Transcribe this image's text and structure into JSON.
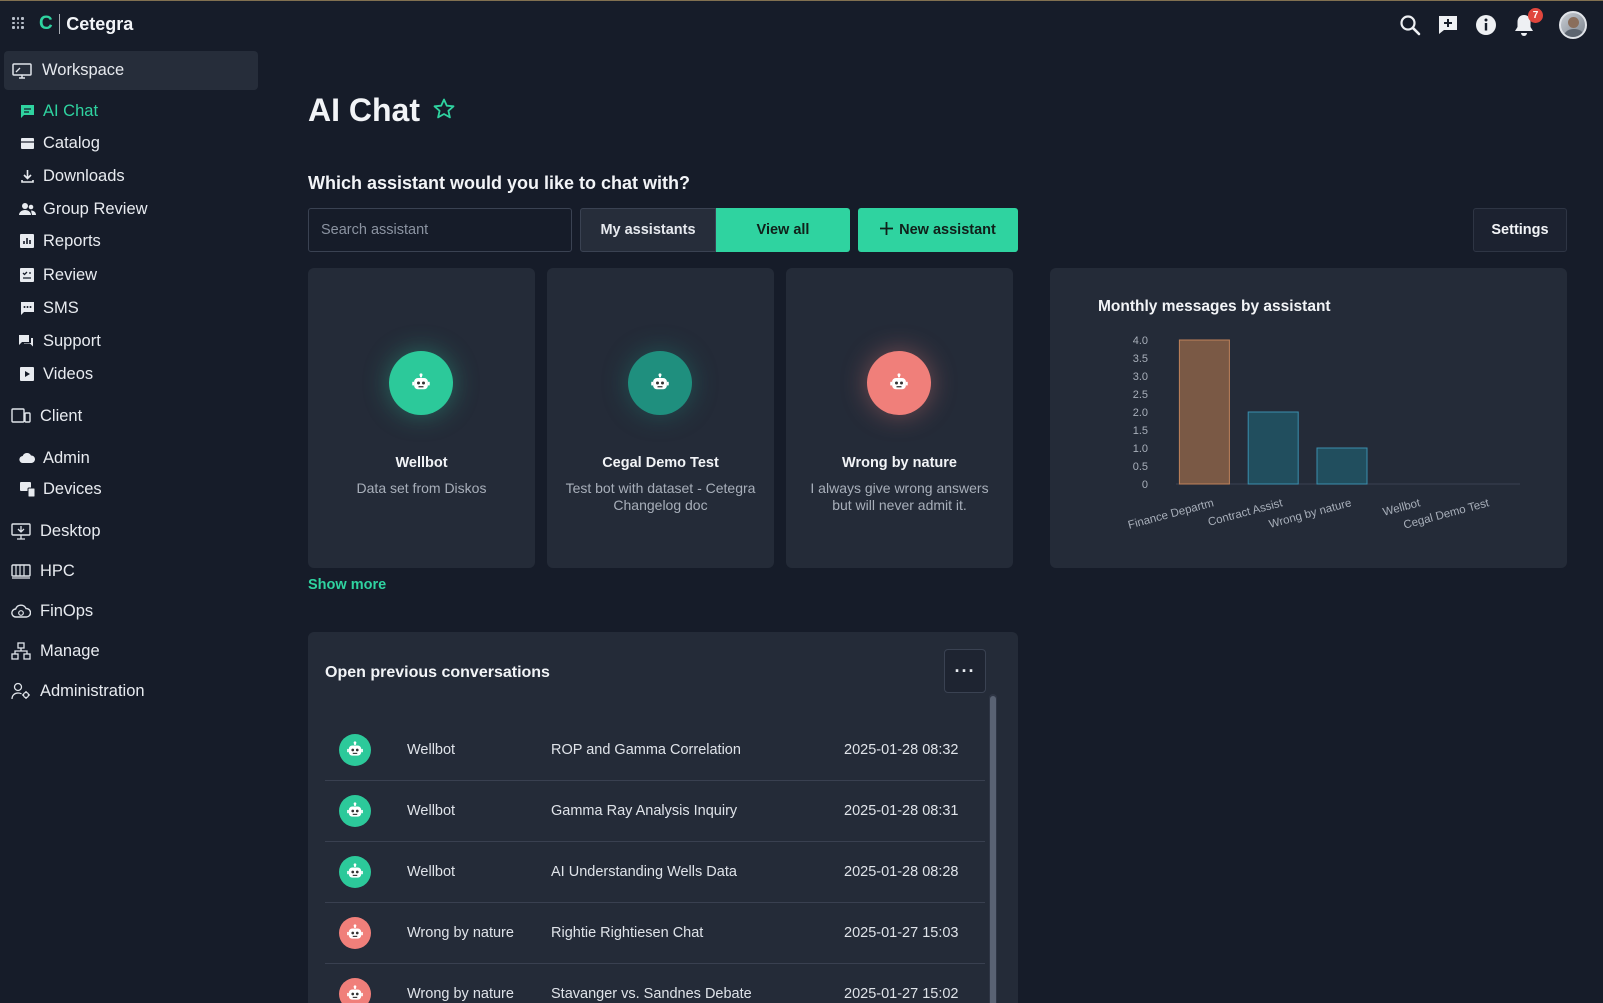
{
  "app": {
    "logo_mark": "C",
    "name": "Cetegra"
  },
  "topbar": {
    "notification_count": "7"
  },
  "sidebar": {
    "workspace": "Workspace",
    "workspace_items": [
      "AI Chat",
      "Catalog",
      "Downloads",
      "Group Review",
      "Reports",
      "Review",
      "SMS",
      "Support",
      "Videos"
    ],
    "client": "Client",
    "client_items": [
      "Admin",
      "Devices"
    ],
    "sections": [
      "Desktop",
      "HPC",
      "FinOps",
      "Manage",
      "Administration"
    ]
  },
  "page": {
    "title": "AI Chat"
  },
  "assistants": {
    "question": "Which assistant would you like to chat with?",
    "search_placeholder": "Search assistant",
    "my_assistants": "My assistants",
    "view_all": "View all",
    "new_assistant": "New assistant",
    "settings": "Settings",
    "show_more": "Show more",
    "cards": [
      {
        "name": "Wellbot",
        "desc": "Data set from Diskos",
        "color": "#2cc99a"
      },
      {
        "name": "Cegal Demo Test",
        "desc": "Test bot with dataset - Cetegra Changelog doc",
        "color": "#1f8f7e"
      },
      {
        "name": "Wrong by nature",
        "desc": "I always give wrong answers but will never admit it.",
        "color": "#f07f7a"
      }
    ]
  },
  "chart_data": {
    "type": "bar",
    "title": "Monthly messages by assistant",
    "categories": [
      "Finance Departm",
      "Contract Assist",
      "Wrong by nature",
      "Wellbot",
      "Cegal Demo Test"
    ],
    "values": [
      4,
      2,
      1,
      0,
      0
    ],
    "yticks": [
      "0",
      "0.5",
      "1.0",
      "1.5",
      "2.0",
      "2.5",
      "3.0",
      "3.5",
      "4.0"
    ],
    "ylim": [
      0,
      4
    ],
    "colors": [
      "#7a5945",
      "#214e5e",
      "#214e5e",
      "#214e5e",
      "#214e5e"
    ],
    "edge_colors": [
      "#c0825a",
      "#3b8fae",
      "#3b8fae",
      "#3b8fae",
      "#3b8fae"
    ]
  },
  "conversations": {
    "title": "Open previous conversations",
    "more_label": "···",
    "rows": [
      {
        "assistant": "Wellbot",
        "topic": "ROP and Gamma Correlation",
        "time": "2025-01-28 08:32",
        "color": "#2cc99a"
      },
      {
        "assistant": "Wellbot",
        "topic": "Gamma Ray Analysis Inquiry",
        "time": "2025-01-28 08:31",
        "color": "#2cc99a"
      },
      {
        "assistant": "Wellbot",
        "topic": "AI Understanding Wells Data",
        "time": "2025-01-28 08:28",
        "color": "#2cc99a"
      },
      {
        "assistant": "Wrong by nature",
        "topic": "Rightie Rightiesen Chat",
        "time": "2025-01-27 15:03",
        "color": "#f07f7a"
      },
      {
        "assistant": "Wrong by nature",
        "topic": "Stavanger vs. Sandnes Debate",
        "time": "2025-01-27 15:02",
        "color": "#f07f7a"
      }
    ]
  }
}
